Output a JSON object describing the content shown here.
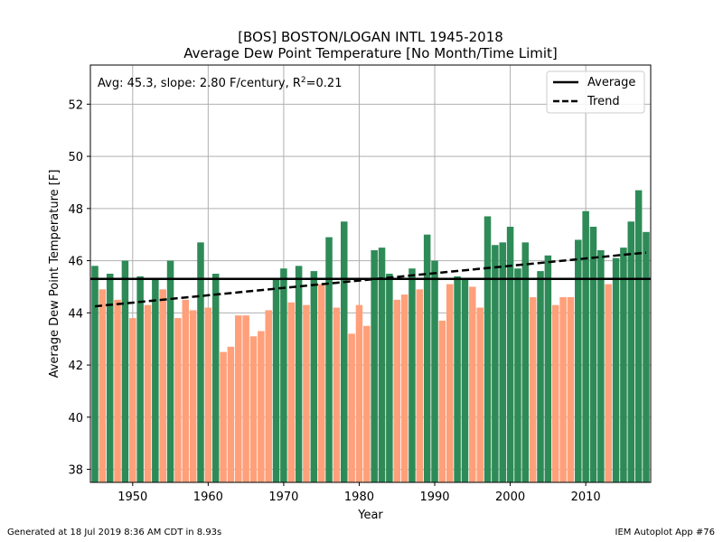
{
  "chart_data": {
    "type": "bar",
    "title_line1": "[BOS] BOSTON/LOGAN INTL 1945-2018",
    "title_line2": "Average Dew Point Temperature [No Month/Time Limit]",
    "xlabel": "Year",
    "ylabel": "Average Dew Point Temperature [F]",
    "xlim": [
      1944.4,
      2018.6
    ],
    "ylim": [
      37.5,
      53.5
    ],
    "xticks": [
      1950,
      1960,
      1970,
      1980,
      1990,
      2000,
      2010
    ],
    "yticks": [
      38,
      40,
      42,
      44,
      46,
      48,
      50,
      52
    ],
    "grid": true,
    "average": 45.3,
    "trend": {
      "start": [
        1945,
        44.25
      ],
      "end": [
        2018,
        46.31
      ]
    },
    "annotation": {
      "prefix": "Avg: 45.3, slope: 2.80 F/century, R",
      "sup": "2",
      "suffix": "=0.21"
    },
    "legend": {
      "position": "top-right",
      "items": [
        {
          "label": "Average",
          "style": "solid"
        },
        {
          "label": "Trend",
          "style": "dashed"
        }
      ]
    },
    "colors": {
      "above": "#2e8b57",
      "below": "#ffa07a",
      "average_line": "#000000",
      "trend_line": "#000000",
      "grid": "#b0b0b0"
    },
    "years": [
      1945,
      1946,
      1947,
      1948,
      1949,
      1950,
      1951,
      1952,
      1953,
      1954,
      1955,
      1956,
      1957,
      1958,
      1959,
      1960,
      1961,
      1962,
      1963,
      1964,
      1965,
      1966,
      1967,
      1968,
      1969,
      1970,
      1971,
      1972,
      1973,
      1974,
      1975,
      1976,
      1977,
      1978,
      1979,
      1980,
      1981,
      1982,
      1983,
      1984,
      1985,
      1986,
      1987,
      1988,
      1989,
      1990,
      1991,
      1992,
      1993,
      1994,
      1995,
      1996,
      1997,
      1998,
      1999,
      2000,
      2001,
      2002,
      2003,
      2004,
      2005,
      2006,
      2007,
      2008,
      2009,
      2010,
      2011,
      2012,
      2013,
      2014,
      2015,
      2016,
      2017,
      2018
    ],
    "values": [
      45.8,
      44.9,
      45.5,
      44.5,
      46.0,
      43.8,
      45.4,
      44.3,
      45.3,
      44.9,
      46.0,
      43.8,
      44.5,
      44.1,
      46.7,
      44.2,
      45.5,
      42.5,
      42.7,
      43.9,
      43.9,
      43.1,
      43.3,
      44.1,
      45.3,
      45.7,
      44.4,
      45.8,
      44.3,
      45.6,
      45.1,
      46.9,
      44.2,
      47.5,
      43.2,
      44.3,
      43.5,
      46.4,
      46.5,
      45.5,
      44.5,
      44.7,
      45.7,
      44.9,
      47.0,
      46.0,
      43.7,
      45.1,
      45.4,
      45.3,
      45.0,
      44.2,
      47.7,
      46.6,
      46.7,
      47.3,
      45.7,
      46.7,
      44.6,
      45.6,
      46.2,
      44.3,
      44.6,
      44.6,
      46.8,
      47.9,
      47.3,
      46.4,
      45.1,
      46.1,
      46.5,
      47.5,
      48.7,
      47.1
    ]
  },
  "footer": {
    "left": "Generated at 18 Jul 2019 8:36 AM CDT in 8.93s",
    "right": "IEM Autoplot App #76"
  }
}
